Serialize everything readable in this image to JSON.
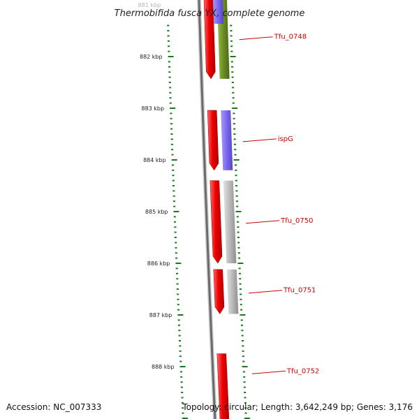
{
  "title": "Thermobifida fusca YX, complete genome",
  "footer": {
    "accession": "Accession: NC_007333",
    "summary": "Topology: circular; Length: 3,642,249 bp; Genes: 3,176"
  },
  "axis": {
    "ticks": [
      {
        "label": "881 kbp",
        "kbp": 881
      },
      {
        "label": "882 kbp",
        "kbp": 882
      },
      {
        "label": "883 kbp",
        "kbp": 883
      },
      {
        "label": "884 kbp",
        "kbp": 884
      },
      {
        "label": "885 kbp",
        "kbp": 885
      },
      {
        "label": "886 kbp",
        "kbp": 886
      },
      {
        "label": "887 kbp",
        "kbp": 887
      },
      {
        "label": "888 kbp",
        "kbp": 888
      }
    ]
  },
  "genes": [
    {
      "label": "Tfu_0748",
      "start": 880.86,
      "end": 882.43,
      "labelled": true
    },
    {
      "label": "ispG",
      "start": 883.04,
      "end": 884.2,
      "labelled": true
    },
    {
      "label": "Tfu_0750",
      "start": 884.4,
      "end": 886.0,
      "labelled": true
    },
    {
      "label": "Tfu_0751",
      "start": 886.12,
      "end": 886.98,
      "labelled": true
    },
    {
      "label": "Tfu_0752",
      "start": 887.75,
      "end": 889.5,
      "labelled": true
    }
  ],
  "gene_colors": {
    "cds": "#ee0000",
    "Tfu_0748": "#6b8e23",
    "ispG": "#7b68ee",
    "Tfu_0750": "#b8b8b8",
    "Tfu_0751": "#b8b8b8",
    "tick": "#1a7a1a",
    "label": "#cc0000"
  }
}
